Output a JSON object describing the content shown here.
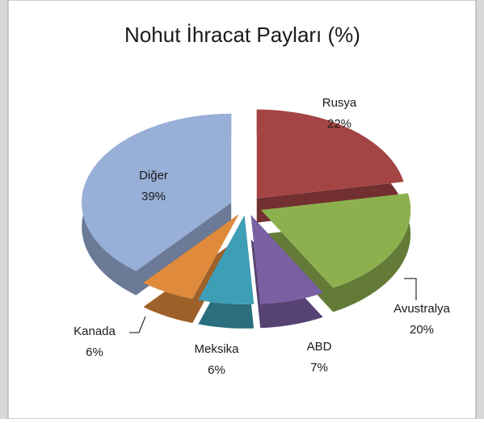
{
  "chart_data": {
    "type": "pie",
    "title": "Nohut İhracat Payları (%)",
    "categories": [
      "Rusya",
      "Avustralya",
      "ABD",
      "Meksika",
      "Kanada",
      "Diğer"
    ],
    "values": [
      22,
      20,
      7,
      6,
      6,
      39
    ],
    "value_labels": [
      "22%",
      "20%",
      "7%",
      "6%",
      "6%",
      "39%"
    ],
    "colors": [
      "#a54444",
      "#8db04f",
      "#7b5fa3",
      "#3e9eb6",
      "#e08a3c",
      "#98afd8"
    ]
  }
}
